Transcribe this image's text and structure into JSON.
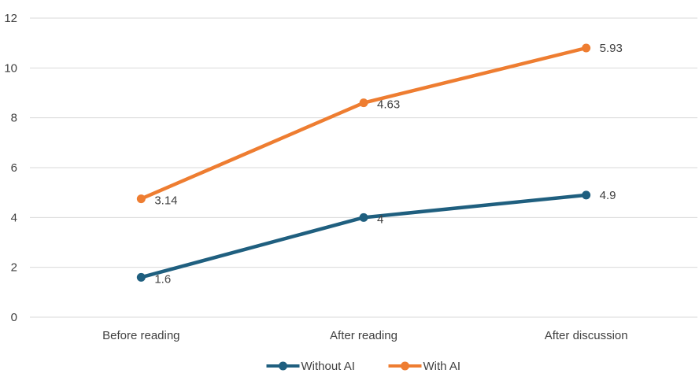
{
  "chart_data": {
    "type": "line",
    "categories": [
      "Before reading",
      "After reading",
      "After discussion"
    ],
    "ylim": [
      0,
      12
    ],
    "yticks": [
      0,
      2,
      4,
      6,
      8,
      10,
      12
    ],
    "grid": true,
    "legend_position": "bottom",
    "series": [
      {
        "name": "Without AI",
        "color": "#1f5f7f",
        "values": [
          1.6,
          4.0,
          4.9
        ],
        "labels": [
          "1.6",
          "4",
          "4.9"
        ]
      },
      {
        "name": "With AI",
        "color": "#ee7d31",
        "values": [
          4.75,
          8.6,
          10.8
        ],
        "labels": [
          "3.14",
          "4.63",
          "5.93"
        ]
      }
    ]
  }
}
